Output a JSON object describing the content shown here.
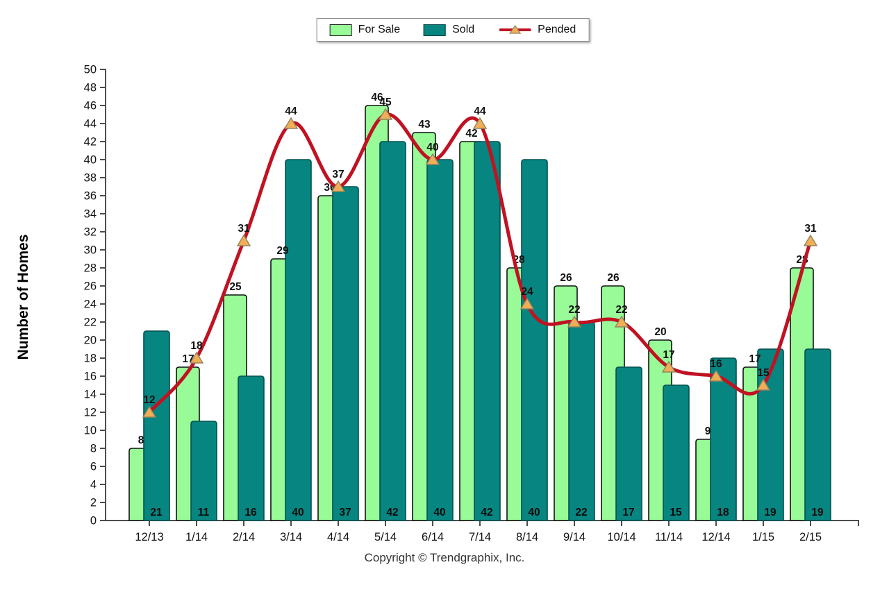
{
  "chart_data": {
    "type": "bar",
    "categories": [
      "12/13",
      "1/14",
      "2/14",
      "3/14",
      "4/14",
      "5/14",
      "6/14",
      "7/14",
      "8/14",
      "9/14",
      "10/14",
      "11/14",
      "12/14",
      "1/15",
      "2/15"
    ],
    "series": [
      {
        "name": "For Sale",
        "type": "bar",
        "color": "#98FB98",
        "border_color": "#111111",
        "values": [
          8,
          17,
          25,
          29,
          36,
          46,
          43,
          42,
          28,
          26,
          26,
          20,
          9,
          17,
          28
        ]
      },
      {
        "name": "Sold",
        "type": "bar",
        "color": "#078580",
        "border_color": "#03514e",
        "values": [
          21,
          11,
          16,
          40,
          37,
          42,
          40,
          42,
          40,
          22,
          17,
          15,
          18,
          19,
          19
        ]
      },
      {
        "name": "Pended",
        "type": "line",
        "color": "#C01222",
        "marker_color": "#F2AE55",
        "marker_border": "#8f855f",
        "values": [
          12,
          18,
          31,
          44,
          37,
          45,
          40,
          44,
          24,
          22,
          22,
          17,
          16,
          15,
          31
        ]
      }
    ],
    "title": "",
    "xlabel": "",
    "ylabel": "Number of Homes",
    "ylim": [
      0,
      50
    ],
    "ytick_step": 2,
    "grid": false,
    "legend_position": "top-center",
    "axis_color": "#4d4d4d",
    "label_color": "#111111",
    "footer": "Copyright © Trendgraphix, Inc."
  }
}
